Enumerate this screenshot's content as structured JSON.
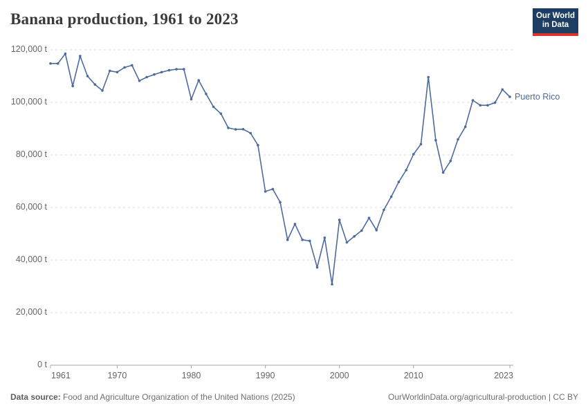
{
  "header": {
    "title": "Banana production, 1961 to 2023"
  },
  "logo": {
    "line1": "Our World",
    "line2": "in Data",
    "bg_color": "#1d3d63",
    "accent_color": "#d8352c"
  },
  "footer": {
    "datasource_label": "Data source:",
    "datasource_text": " Food and Agriculture Organization of the United Nations (2025)",
    "credit": "OurWorldinData.org/agricultural-production | CC BY"
  },
  "chart_data": {
    "type": "line",
    "title": "Banana production, 1961 to 2023",
    "unit": "t",
    "grid": "dashed horizontal gridlines, light gray",
    "legend_position": "right of last point",
    "xlim": [
      1961,
      2023
    ],
    "ylim": [
      0,
      120000
    ],
    "x": [
      1961,
      1962,
      1963,
      1964,
      1965,
      1966,
      1967,
      1968,
      1969,
      1970,
      1971,
      1972,
      1973,
      1974,
      1975,
      1976,
      1977,
      1978,
      1979,
      1980,
      1981,
      1982,
      1983,
      1984,
      1985,
      1986,
      1987,
      1988,
      1989,
      1990,
      1991,
      1992,
      1993,
      1994,
      1995,
      1996,
      1997,
      1998,
      1999,
      2000,
      2001,
      2002,
      2003,
      2004,
      2005,
      2006,
      2007,
      2008,
      2009,
      2010,
      2011,
      2012,
      2013,
      2014,
      2015,
      2016,
      2017,
      2018,
      2019,
      2020,
      2021,
      2022,
      2023
    ],
    "series": [
      {
        "name": "Puerto Rico",
        "color": "#4c6a9c",
        "values": [
          114800,
          114800,
          118500,
          106200,
          117600,
          110000,
          106800,
          104500,
          112000,
          111500,
          113300,
          114100,
          108200,
          109600,
          110600,
          111500,
          112200,
          112600,
          112600,
          101200,
          108400,
          103200,
          98300,
          95700,
          90300,
          89700,
          89800,
          88300,
          83700,
          66100,
          67000,
          62000,
          47700,
          53700,
          47700,
          47300,
          37200,
          48500,
          30800,
          55300,
          46700,
          49000,
          51200,
          56000,
          51400,
          59100,
          64100,
          69700,
          74200,
          80300,
          84100,
          109600,
          85600,
          73300,
          77700,
          85900,
          90700,
          100800,
          98900,
          98900,
          99900,
          104900,
          102100
        ]
      }
    ],
    "yticks": [
      {
        "value": 0,
        "label": "0 t"
      },
      {
        "value": 20000,
        "label": "20,000 t"
      },
      {
        "value": 40000,
        "label": "40,000 t"
      },
      {
        "value": 60000,
        "label": "60,000 t"
      },
      {
        "value": 80000,
        "label": "80,000 t"
      },
      {
        "value": 100000,
        "label": "100,000 t"
      },
      {
        "value": 120000,
        "label": "120,000 t"
      }
    ],
    "xticks": [
      {
        "value": 1961,
        "label": "1961"
      },
      {
        "value": 1970,
        "label": "1970"
      },
      {
        "value": 1980,
        "label": "1980"
      },
      {
        "value": 1990,
        "label": "1990"
      },
      {
        "value": 2000,
        "label": "2000"
      },
      {
        "value": 2010,
        "label": "2010"
      },
      {
        "value": 2023,
        "label": "2023"
      }
    ]
  }
}
